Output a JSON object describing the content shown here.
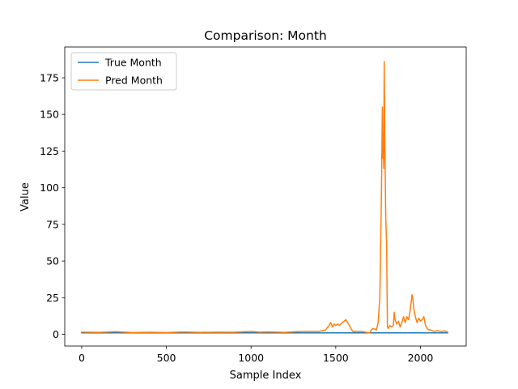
{
  "chart_data": {
    "type": "line",
    "title": "Comparison: Month",
    "xlabel": "Sample Index",
    "ylabel": "Value",
    "xlim": [
      -100,
      2270
    ],
    "ylim": [
      -8,
      196
    ],
    "xticks": [
      0,
      500,
      1000,
      1500,
      2000
    ],
    "yticks": [
      0,
      25,
      50,
      75,
      100,
      125,
      150,
      175
    ],
    "grid": false,
    "legend_position": "top-left",
    "series": [
      {
        "name": "True Month",
        "color": "#1f77b4",
        "x": [
          0,
          2160
        ],
        "y": [
          1,
          1
        ]
      },
      {
        "name": "Pred Month",
        "color": "#ff7f0e",
        "x": [
          0,
          100,
          200,
          300,
          400,
          500,
          600,
          700,
          800,
          900,
          1000,
          1050,
          1100,
          1200,
          1300,
          1400,
          1440,
          1460,
          1470,
          1480,
          1490,
          1500,
          1510,
          1520,
          1540,
          1550,
          1560,
          1600,
          1650,
          1700,
          1710,
          1720,
          1740,
          1750,
          1760,
          1765,
          1770,
          1775,
          1778,
          1780,
          1783,
          1786,
          1790,
          1795,
          1800,
          1805,
          1810,
          1820,
          1830,
          1840,
          1845,
          1850,
          1860,
          1870,
          1880,
          1890,
          1900,
          1910,
          1920,
          1930,
          1940,
          1950,
          1955,
          1960,
          1970,
          1980,
          1990,
          2000,
          2010,
          2020,
          2030,
          2040,
          2050,
          2060,
          2080,
          2100,
          2120,
          2130,
          2140,
          2150,
          2160
        ],
        "y": [
          1.5,
          1.3,
          1.8,
          1.2,
          1.4,
          1.2,
          1.6,
          1.3,
          1.5,
          1.4,
          2.0,
          1.5,
          1.7,
          1.3,
          2.0,
          2.0,
          3.0,
          6.0,
          8.0,
          5.0,
          7.0,
          6.0,
          7.0,
          6.0,
          8.0,
          9.0,
          10.0,
          2.0,
          2.0,
          1.0,
          3.0,
          4.0,
          3.0,
          8.0,
          25.0,
          60.0,
          100.0,
          155.0,
          120.0,
          135.0,
          113.0,
          186.0,
          130.0,
          80.0,
          62.0,
          5.0,
          4.0,
          6.0,
          5.0,
          6.0,
          15.0,
          10.0,
          7.0,
          9.0,
          5.0,
          8.0,
          12.0,
          8.0,
          12.0,
          10.0,
          17.0,
          27.0,
          24.0,
          18.0,
          12.0,
          8.0,
          11.0,
          9.0,
          10.0,
          12.0,
          6.0,
          4.0,
          3.0,
          3.0,
          2.0,
          2.5,
          2.0,
          2.0,
          2.5,
          2.0,
          1.5
        ]
      }
    ]
  }
}
